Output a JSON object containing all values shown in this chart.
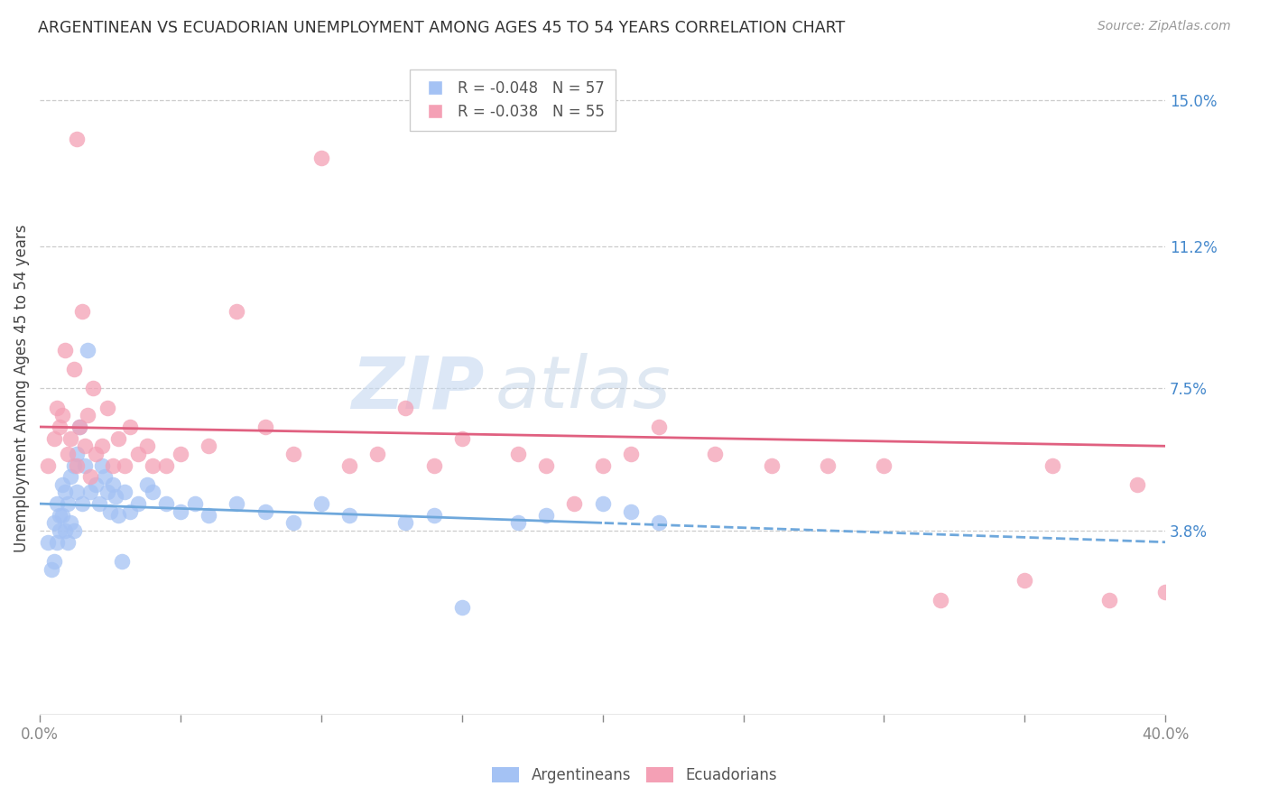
{
  "title": "ARGENTINEAN VS ECUADORIAN UNEMPLOYMENT AMONG AGES 45 TO 54 YEARS CORRELATION CHART",
  "source": "Source: ZipAtlas.com",
  "ylabel": "Unemployment Among Ages 45 to 54 years",
  "right_yticks": [
    3.8,
    7.5,
    11.2,
    15.0
  ],
  "right_ytick_labels": [
    "3.8%",
    "7.5%",
    "11.2%",
    "15.0%"
  ],
  "xlim": [
    0.0,
    40.0
  ],
  "ylim": [
    -1.0,
    16.0
  ],
  "argentinean_R": -0.048,
  "argentinean_N": 57,
  "ecuadorian_R": -0.038,
  "ecuadorian_N": 55,
  "arg_color": "#a4c2f4",
  "ecu_color": "#f4a0b5",
  "arg_line_color": "#6fa8dc",
  "ecu_line_color": "#e06080",
  "watermark_zip": "ZIP",
  "watermark_atlas": "atlas",
  "legend_label_arg": "Argentineans",
  "legend_label_ecu": "Ecuadorians",
  "arg_trend_start_y": 4.5,
  "arg_trend_end_y": 3.5,
  "ecu_trend_start_y": 6.5,
  "ecu_trend_end_y": 6.0,
  "argentinean_x": [
    0.3,
    0.4,
    0.5,
    0.5,
    0.6,
    0.6,
    0.7,
    0.7,
    0.8,
    0.8,
    0.9,
    0.9,
    1.0,
    1.0,
    1.1,
    1.1,
    1.2,
    1.2,
    1.3,
    1.3,
    1.4,
    1.5,
    1.6,
    1.7,
    1.8,
    2.0,
    2.1,
    2.2,
    2.3,
    2.4,
    2.5,
    2.6,
    2.7,
    2.8,
    3.0,
    3.2,
    3.5,
    3.8,
    4.0,
    4.5,
    5.0,
    5.5,
    6.0,
    7.0,
    8.0,
    9.0,
    10.0,
    11.0,
    13.0,
    14.0,
    15.0,
    17.0,
    18.0,
    20.0,
    21.0,
    22.0,
    2.9
  ],
  "argentinean_y": [
    3.5,
    2.8,
    4.0,
    3.0,
    3.5,
    4.5,
    4.2,
    3.8,
    5.0,
    4.2,
    3.8,
    4.8,
    4.5,
    3.5,
    5.2,
    4.0,
    5.5,
    3.8,
    4.8,
    5.8,
    6.5,
    4.5,
    5.5,
    8.5,
    4.8,
    5.0,
    4.5,
    5.5,
    5.2,
    4.8,
    4.3,
    5.0,
    4.7,
    4.2,
    4.8,
    4.3,
    4.5,
    5.0,
    4.8,
    4.5,
    4.3,
    4.5,
    4.2,
    4.5,
    4.3,
    4.0,
    4.5,
    4.2,
    4.0,
    4.2,
    1.8,
    4.0,
    4.2,
    4.5,
    4.3,
    4.0,
    3.0
  ],
  "ecuadorian_x": [
    0.3,
    0.5,
    0.6,
    0.7,
    0.8,
    0.9,
    1.0,
    1.1,
    1.2,
    1.3,
    1.4,
    1.5,
    1.6,
    1.7,
    1.8,
    1.9,
    2.0,
    2.2,
    2.4,
    2.6,
    2.8,
    3.0,
    3.2,
    3.5,
    3.8,
    4.0,
    4.5,
    5.0,
    6.0,
    7.0,
    8.0,
    9.0,
    10.0,
    11.0,
    13.0,
    14.0,
    15.0,
    17.0,
    18.0,
    19.0,
    20.0,
    22.0,
    24.0,
    26.0,
    28.0,
    30.0,
    32.0,
    35.0,
    36.0,
    38.0,
    39.0,
    40.0,
    1.3,
    12.0,
    21.0
  ],
  "ecuadorian_y": [
    5.5,
    6.2,
    7.0,
    6.5,
    6.8,
    8.5,
    5.8,
    6.2,
    8.0,
    5.5,
    6.5,
    9.5,
    6.0,
    6.8,
    5.2,
    7.5,
    5.8,
    6.0,
    7.0,
    5.5,
    6.2,
    5.5,
    6.5,
    5.8,
    6.0,
    5.5,
    5.5,
    5.8,
    6.0,
    9.5,
    6.5,
    5.8,
    13.5,
    5.5,
    7.0,
    5.5,
    6.2,
    5.8,
    5.5,
    4.5,
    5.5,
    6.5,
    5.8,
    5.5,
    5.5,
    5.5,
    2.0,
    2.5,
    5.5,
    2.0,
    5.0,
    2.2,
    14.0,
    5.8,
    5.8
  ]
}
